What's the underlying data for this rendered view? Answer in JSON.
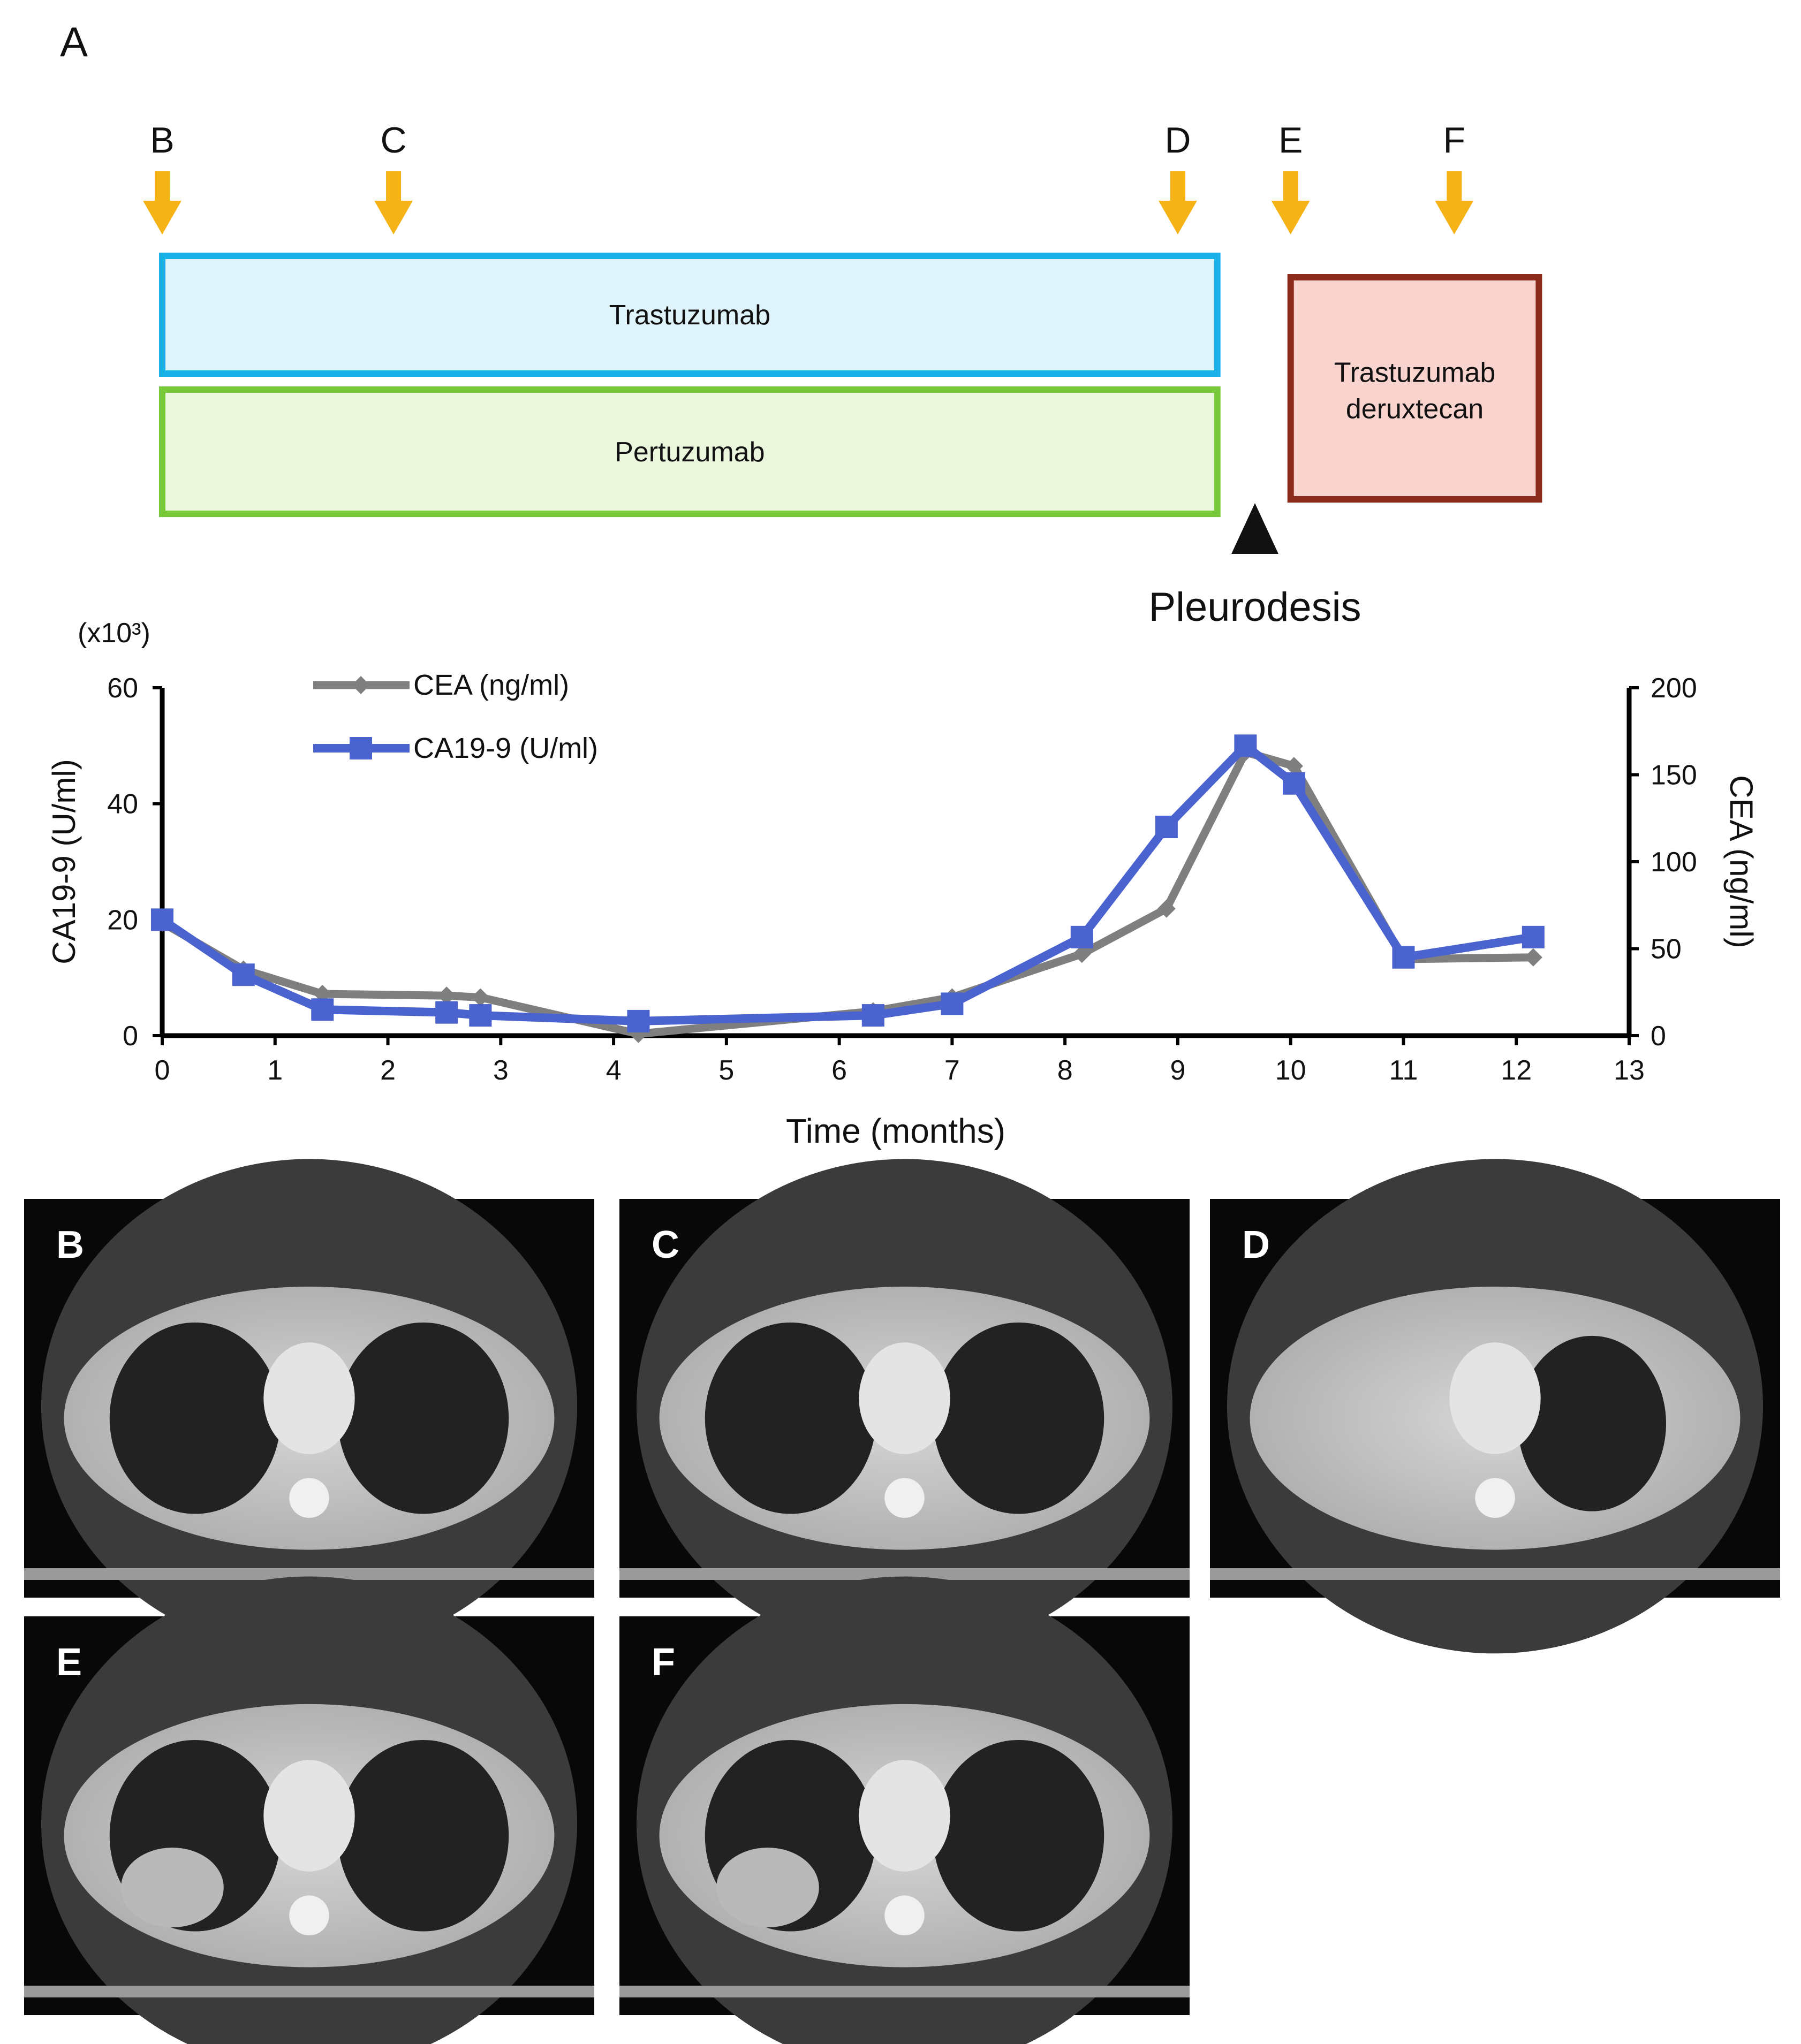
{
  "panel_a": {
    "label": "A",
    "markers": [
      {
        "label": "B",
        "month": 0.0
      },
      {
        "label": "C",
        "month": 2.05
      },
      {
        "label": "D",
        "month": 9.0
      },
      {
        "label": "E",
        "month": 10.0
      },
      {
        "label": "F",
        "month": 11.45
      }
    ],
    "therapies": [
      {
        "name": "Trastuzumab",
        "start_month": 0,
        "end_month": 9.35,
        "fill": "#dff3fa",
        "stroke": "#1ab0e8"
      },
      {
        "name": "Pertuzumab",
        "start_month": 0,
        "end_month": 9.35,
        "fill": "#eaf7dc",
        "stroke": "#78c93a"
      },
      {
        "name_lines": [
          "Trastuzumab",
          "deruxtecan"
        ],
        "start_month": 10.0,
        "end_month": 12.2,
        "fill": "#f9d4ce",
        "stroke": "#8b2a1a"
      }
    ],
    "event": {
      "label": "Pleurodesis",
      "month": 9.7
    },
    "arrow_color": "#f5b317"
  },
  "chart_data": {
    "type": "line",
    "title": "",
    "xlabel": "Time (months)",
    "ylabel_left": "CA19-9 (U/ml)",
    "left_scale_note": "(x10³)",
    "ylabel_right": "CEA (ng/ml)",
    "xlim": [
      0,
      13
    ],
    "xticks": [
      0,
      1,
      2,
      3,
      4,
      5,
      6,
      7,
      8,
      9,
      10,
      11,
      12,
      13
    ],
    "ylim_left": [
      0,
      60
    ],
    "yticks_left": [
      0,
      20,
      40,
      60
    ],
    "ylim_right": [
      0,
      200
    ],
    "yticks_right": [
      0,
      50,
      100,
      150,
      200
    ],
    "legend_position": "top-left",
    "series": [
      {
        "name": "CEA (ng/ml)",
        "axis": "right",
        "color": "#7f7f7f",
        "marker": "diamond",
        "x": [
          0,
          0.72,
          1.42,
          2.52,
          2.82,
          4.22,
          6.3,
          7.0,
          8.15,
          8.9,
          9.6,
          10.03,
          11.0,
          12.15
        ],
        "y": [
          65,
          38,
          24,
          23,
          22,
          1,
          14,
          22,
          47,
          73,
          163,
          155,
          44,
          45
        ]
      },
      {
        "name": "CA19-9 (U/ml)",
        "axis": "left",
        "color": "#4a63cf",
        "marker": "square",
        "x": [
          0,
          0.72,
          1.42,
          2.52,
          2.82,
          4.22,
          6.3,
          7.0,
          8.15,
          8.9,
          9.6,
          10.03,
          11.0,
          12.15
        ],
        "y": [
          20,
          10.5,
          4.5,
          4,
          3.5,
          2.5,
          3.5,
          5.5,
          17,
          36,
          50,
          43.5,
          13.5,
          17
        ]
      }
    ]
  },
  "ct_panels": [
    {
      "label": "B"
    },
    {
      "label": "C"
    },
    {
      "label": "D"
    },
    {
      "label": "E"
    },
    {
      "label": "F"
    }
  ]
}
